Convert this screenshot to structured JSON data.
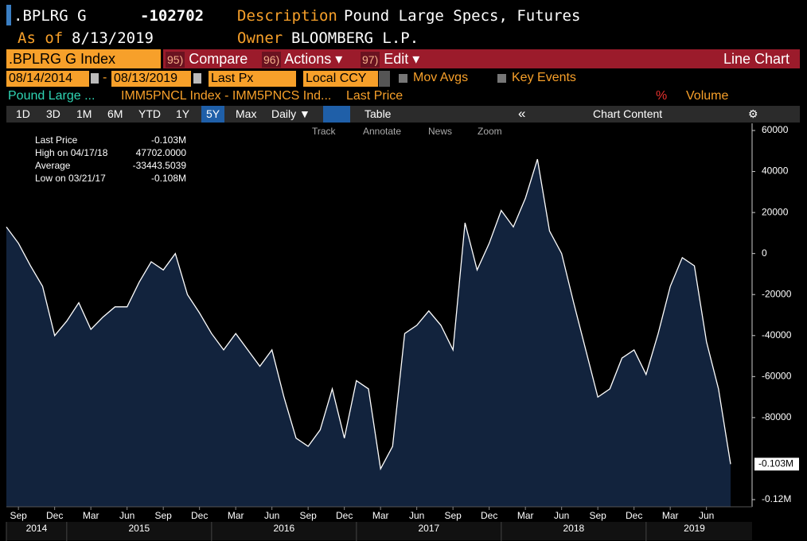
{
  "header": {
    "ticker": ".BPLRG G",
    "value": "-102702",
    "description_label": "Description",
    "description": "Pound Large Specs, Futures",
    "asof_label": "As of",
    "asof": "8/13/2019",
    "owner_label": "Owner",
    "owner": "BLOOMBERG L.P."
  },
  "toolbar": {
    "security": ".BPLRG G Index",
    "menus": [
      {
        "num": "95)",
        "label": "Compare"
      },
      {
        "num": "96)",
        "label": "Actions ▾"
      },
      {
        "num": "97)",
        "label": "Edit ▾"
      }
    ],
    "view": "Line Chart"
  },
  "controls": {
    "start": "08/14/2014",
    "sep": "-",
    "end": "08/13/2019",
    "field": "Last Px",
    "currency": "Local CCY",
    "mov_avgs": "Mov Avgs",
    "key_events": "Key Events"
  },
  "series_row": {
    "name": "Pound Large ...",
    "formula": "IMM5PNCL Index - IMM5PNCS Ind...",
    "field": "Last Price",
    "pct": "%",
    "volume": "Volume"
  },
  "periods": [
    "1D",
    "3D",
    "1M",
    "6M",
    "YTD",
    "1Y",
    "5Y",
    "Max"
  ],
  "selected_period": "5Y",
  "frequency": "Daily ▼",
  "table": "Table",
  "collapse": "«",
  "chart_content": "Chart Content",
  "chart_tools": [
    "Track",
    "Annotate",
    "News",
    "Zoom"
  ],
  "stats": [
    {
      "label": "Last Price",
      "value": "-0.103M"
    },
    {
      "label": "High on 04/17/18",
      "value": "47702.0000"
    },
    {
      "label": "Average",
      "value": "-33443.5039"
    },
    {
      "label": "Low on 03/21/17",
      "value": "-0.108M"
    }
  ],
  "chart_data": {
    "type": "area",
    "color": "#ffffff",
    "fill": "#12233d",
    "x": [
      "2014-08",
      "2014-09",
      "2014-10",
      "2014-11",
      "2014-12",
      "2015-01",
      "2015-02",
      "2015-03",
      "2015-04",
      "2015-05",
      "2015-06",
      "2015-07",
      "2015-08",
      "2015-09",
      "2015-10",
      "2015-11",
      "2015-12",
      "2016-01",
      "2016-02",
      "2016-03",
      "2016-04",
      "2016-05",
      "2016-06",
      "2016-07",
      "2016-08",
      "2016-09",
      "2016-10",
      "2016-11",
      "2016-12",
      "2017-01",
      "2017-02",
      "2017-03",
      "2017-04",
      "2017-05",
      "2017-06",
      "2017-07",
      "2017-08",
      "2017-09",
      "2017-10",
      "2017-11",
      "2017-12",
      "2018-01",
      "2018-02",
      "2018-03",
      "2018-04",
      "2018-05",
      "2018-06",
      "2018-07",
      "2018-08",
      "2018-09",
      "2018-10",
      "2018-11",
      "2018-12",
      "2019-01",
      "2019-02",
      "2019-03",
      "2019-04",
      "2019-05",
      "2019-06",
      "2019-07",
      "2019-08"
    ],
    "values": [
      13000,
      5000,
      -6000,
      -16000,
      -40000,
      -33000,
      -24000,
      -37000,
      -31000,
      -26000,
      -26000,
      -14000,
      -4000,
      -8000,
      0,
      -20000,
      -29000,
      -39000,
      -47000,
      -39000,
      -47000,
      -55000,
      -47000,
      -70000,
      -90000,
      -94000,
      -86000,
      -66000,
      -90000,
      -62000,
      -66000,
      -105000,
      -94000,
      -39000,
      -35000,
      -28000,
      -35000,
      -47000,
      15000,
      -8000,
      5000,
      21000,
      13000,
      27000,
      46000,
      11000,
      0,
      -24000,
      -47000,
      -70000,
      -66000,
      -51000,
      -47000,
      -59000,
      -39000,
      -16000,
      -2000,
      -6000,
      -43000,
      -66000,
      -102702
    ],
    "last_label": "-0.103M",
    "ylim": [
      -123500,
      63500
    ],
    "yticks": [
      60000,
      40000,
      20000,
      0,
      -20000,
      -40000,
      -60000,
      -80000,
      {
        "value": -120000,
        "label": "-0.12M"
      }
    ],
    "xticks": [
      {
        "value": "2014-09",
        "label": "Sep"
      },
      {
        "value": "2014-12",
        "label": "Dec"
      },
      {
        "value": "2015-03",
        "label": "Mar"
      },
      {
        "value": "2015-06",
        "label": "Jun"
      },
      {
        "value": "2015-09",
        "label": "Sep"
      },
      {
        "value": "2015-12",
        "label": "Dec"
      },
      {
        "value": "2016-03",
        "label": "Mar"
      },
      {
        "value": "2016-06",
        "label": "Jun"
      },
      {
        "value": "2016-09",
        "label": "Sep"
      },
      {
        "value": "2016-12",
        "label": "Dec"
      },
      {
        "value": "2017-03",
        "label": "Mar"
      },
      {
        "value": "2017-06",
        "label": "Jun"
      },
      {
        "value": "2017-09",
        "label": "Sep"
      },
      {
        "value": "2017-12",
        "label": "Dec"
      },
      {
        "value": "2018-03",
        "label": "Mar"
      },
      {
        "value": "2018-06",
        "label": "Jun"
      },
      {
        "value": "2018-09",
        "label": "Sep"
      },
      {
        "value": "2018-12",
        "label": "Dec"
      },
      {
        "value": "2019-03",
        "label": "Mar"
      },
      {
        "value": "2019-06",
        "label": "Jun"
      }
    ],
    "years": [
      2014,
      2015,
      2016,
      2017,
      2018,
      2019
    ],
    "axis_side": "right",
    "grid": false
  }
}
